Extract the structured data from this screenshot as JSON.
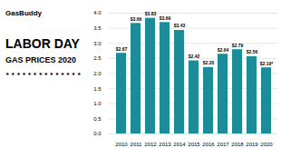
{
  "chart_data": {
    "type": "bar",
    "title": "LABOR DAY",
    "subtitle": "GAS PRICES 2020",
    "annotations": [
      "GasBuddy",
      "★ ★ ★ ★ ★ ★ ★ ★ ★ ★ ★ ★ ★ ★"
    ],
    "categories": [
      "2010",
      "2011",
      "2012",
      "2013",
      "2014",
      "2015",
      "2016",
      "2017",
      "2018",
      "2019",
      "2020"
    ],
    "values": [
      2.67,
      3.66,
      3.83,
      3.69,
      3.43,
      2.42,
      2.2,
      2.64,
      2.79,
      2.56,
      2.19
    ],
    "value_labels": [
      "$2.67",
      "$3.66",
      "$3.83",
      "$3.69",
      "$3.43",
      "$2.42",
      "$2.20",
      "$2.64",
      "$2.79",
      "$2.56",
      "$2.19*"
    ],
    "color": "#1b8c98",
    "ylim": [
      0,
      4.0
    ],
    "yticks": [
      {
        "value": 0,
        "label": "0.0"
      },
      0.5,
      {
        "value": 1,
        "label": "1.0"
      },
      1.5,
      {
        "value": 2,
        "label": "2.0"
      },
      2.5,
      {
        "value": 3,
        "label": "3.0"
      },
      3.5,
      {
        "value": 4,
        "label": "4.0"
      }
    ],
    "grid": true,
    "data_labels": true
  }
}
